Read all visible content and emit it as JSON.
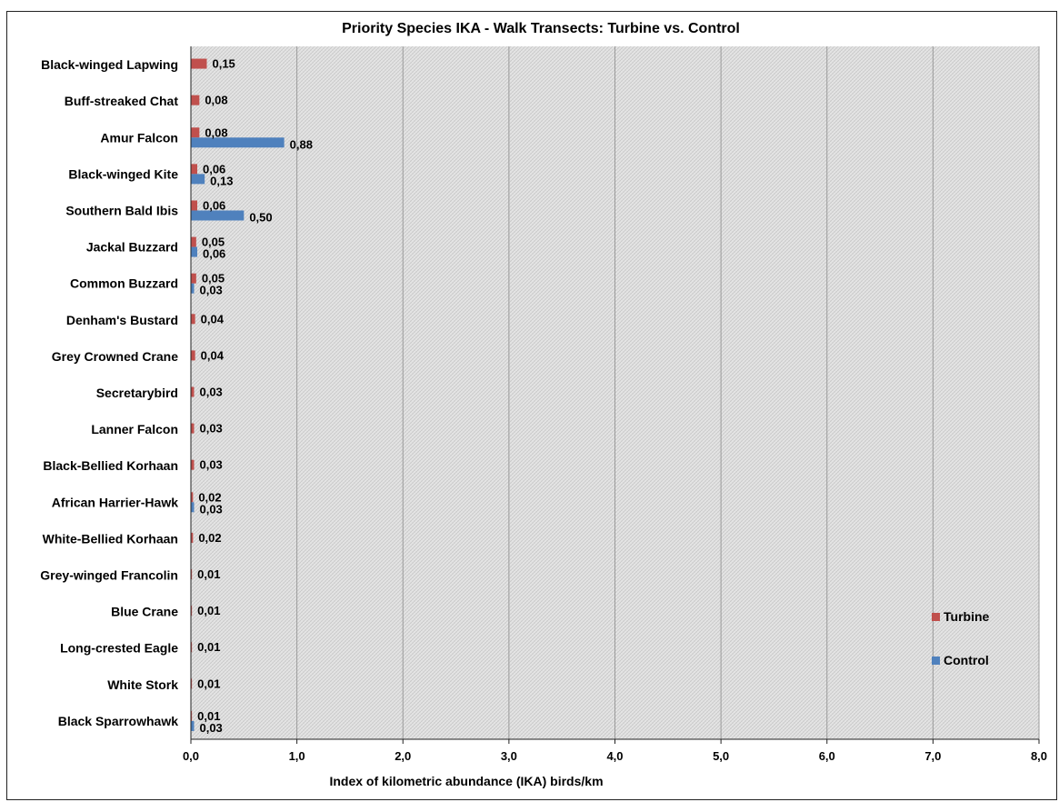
{
  "chart_data": {
    "type": "bar",
    "orientation": "horizontal",
    "title": "Priority Species IKA - Walk Transects: Turbine vs. Control",
    "xlabel": "Index of kilometric abundance (IKA) birds/km",
    "ylabel": "",
    "xlim": [
      0,
      8
    ],
    "xticks": [
      "0,0",
      "1,0",
      "2,0",
      "3,0",
      "4,0",
      "5,0",
      "6,0",
      "7,0",
      "8,0"
    ],
    "grid": true,
    "legend_position": "right",
    "categories": [
      "Black-winged Lapwing",
      "Buff-streaked Chat",
      "Amur Falcon",
      "Black-winged Kite",
      "Southern Bald Ibis",
      "Jackal Buzzard",
      "Common Buzzard",
      "Denham's Bustard",
      "Grey Crowned Crane",
      "Secretarybird",
      "Lanner Falcon",
      "Black-Bellied Korhaan",
      "African Harrier-Hawk",
      "White-Bellied Korhaan",
      "Grey-winged Francolin",
      "Blue Crane",
      "Long-crested Eagle",
      "White Stork",
      "Black Sparrowhawk"
    ],
    "series": [
      {
        "name": "Turbine",
        "color": "#c0504d",
        "values": [
          0.15,
          0.08,
          0.08,
          0.06,
          0.06,
          0.05,
          0.05,
          0.04,
          0.04,
          0.03,
          0.03,
          0.03,
          0.02,
          0.02,
          0.01,
          0.01,
          0.01,
          0.01,
          0.01
        ],
        "labels": [
          "0,15",
          "0,08",
          "0,08",
          "0,06",
          "0,06",
          "0,05",
          "0,05",
          "0,04",
          "0,04",
          "0,03",
          "0,03",
          "0,03",
          "0,02",
          "0,02",
          "0,01",
          "0,01",
          "0,01",
          "0,01",
          "0,01"
        ]
      },
      {
        "name": "Control",
        "color": "#4f81bd",
        "values": [
          null,
          null,
          0.88,
          0.13,
          0.5,
          0.06,
          0.03,
          null,
          null,
          null,
          null,
          null,
          0.03,
          null,
          null,
          null,
          null,
          null,
          0.03
        ],
        "labels": [
          null,
          null,
          "0,88",
          "0,13",
          "0,50",
          "0,06",
          "0,03",
          null,
          null,
          null,
          null,
          null,
          "0,03",
          null,
          null,
          null,
          null,
          null,
          "0,03"
        ]
      }
    ]
  }
}
